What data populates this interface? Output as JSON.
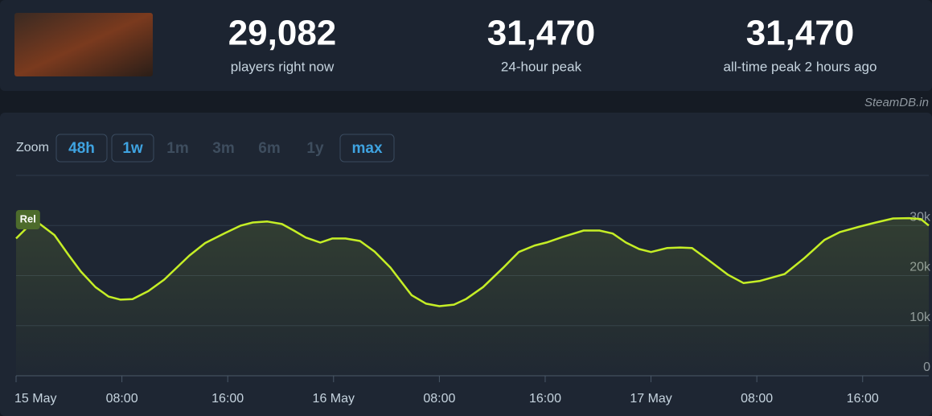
{
  "header": {
    "stats": [
      {
        "value": "29,082",
        "label": "players right now"
      },
      {
        "value": "31,470",
        "label": "24-hour peak"
      },
      {
        "value": "31,470",
        "label": "all-time peak 2 hours ago"
      }
    ]
  },
  "watermark": "SteamDB.in",
  "zoom": {
    "label": "Zoom",
    "buttons": [
      {
        "label": "48h",
        "active": true
      },
      {
        "label": "1w",
        "active": true
      },
      {
        "label": "1m",
        "active": false
      },
      {
        "label": "3m",
        "active": false
      },
      {
        "label": "6m",
        "active": false
      },
      {
        "label": "1y",
        "active": false
      },
      {
        "label": "max",
        "active": true
      }
    ]
  },
  "chart_data": {
    "type": "line",
    "color": "#c5ee26",
    "grid": true,
    "x": [
      0,
      1.1,
      1.8,
      2.9,
      4.0,
      4.9,
      6.0,
      7.0,
      7.9,
      8.8,
      10.0,
      11.2,
      13.1,
      14.3,
      15.8,
      17.0,
      17.9,
      19.0,
      20.1,
      21.0,
      21.9,
      23.0,
      23.9,
      24.9,
      26.0,
      27.1,
      28.3,
      29.9,
      31.0,
      32.0,
      33.1,
      34.0,
      35.3,
      36.8,
      38.0,
      39.2,
      40.1,
      41.3,
      42.9,
      44.1,
      45.1,
      46.1,
      47.1,
      48.0,
      49.2,
      50.2,
      51.1,
      52.3,
      53.8,
      55.0,
      56.2,
      58.1,
      59.6,
      61.1,
      62.3,
      63.8,
      65.0,
      66.3,
      67.5,
      68.4,
      69.0
    ],
    "values": [
      27400,
      30300,
      30300,
      28100,
      24000,
      20800,
      17700,
      15800,
      15200,
      15300,
      16900,
      19200,
      24000,
      26500,
      28500,
      30000,
      30600,
      30800,
      30300,
      29000,
      27600,
      26600,
      27400,
      27400,
      26900,
      24800,
      21600,
      16100,
      14400,
      13900,
      14200,
      15300,
      17700,
      21500,
      24700,
      26000,
      26600,
      27700,
      29000,
      29000,
      28400,
      26600,
      25300,
      24700,
      25500,
      25600,
      25500,
      23200,
      20200,
      18500,
      18900,
      20300,
      23500,
      27100,
      28700,
      29800,
      30600,
      31400,
      31470,
      31300,
      30000
    ],
    "xlim": [
      0,
      69
    ],
    "xticks": [
      {
        "value": 0,
        "label": "15 May"
      },
      {
        "value": 8,
        "label": "08:00"
      },
      {
        "value": 16,
        "label": "16:00"
      },
      {
        "value": 24,
        "label": "16 May"
      },
      {
        "value": 32,
        "label": "08:00"
      },
      {
        "value": 40,
        "label": "16:00"
      },
      {
        "value": 48,
        "label": "17 May"
      },
      {
        "value": 56,
        "label": "08:00"
      },
      {
        "value": 64,
        "label": "16:00"
      }
    ],
    "ylim": [
      0,
      40000
    ],
    "yticks": [
      0,
      {
        "value": 10000,
        "label": "10k"
      },
      {
        "value": 20000,
        "label": "20k"
      },
      {
        "value": 30000,
        "label": "30k"
      },
      {
        "value": 40000,
        "label": ""
      }
    ],
    "annotations": [
      {
        "x": 0.9,
        "label": "Rel"
      }
    ]
  }
}
